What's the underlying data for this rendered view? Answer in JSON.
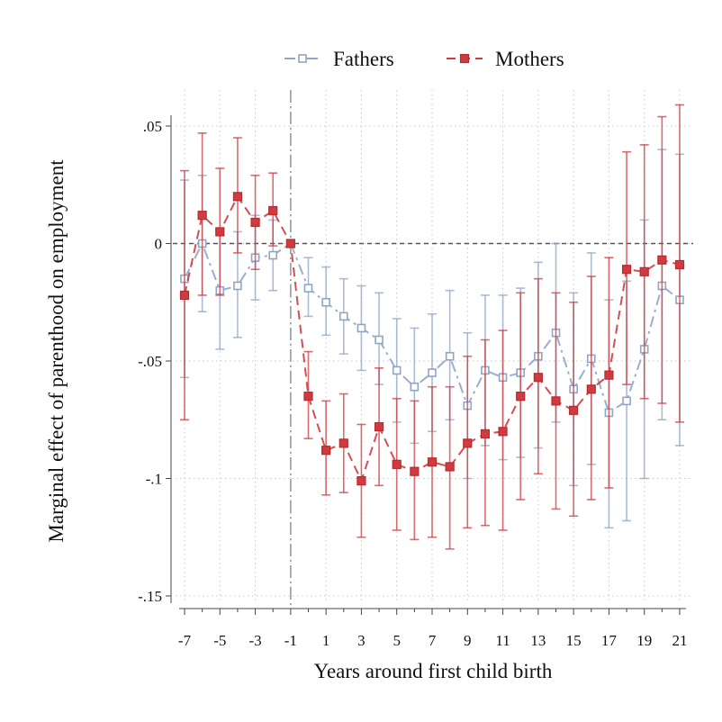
{
  "chart_data": {
    "type": "line",
    "title": "",
    "xlabel": "Years around first child birth",
    "ylabel": "Marginal effect of parenthood on employment",
    "xlim": [
      -7,
      21
    ],
    "ylim": [
      -0.15,
      0.05
    ],
    "x_ticks": [
      -7,
      -5,
      -3,
      -1,
      1,
      3,
      5,
      7,
      9,
      11,
      13,
      15,
      17,
      19,
      21
    ],
    "x_tick_labels": [
      "-7",
      "-5",
      "-3",
      "-1",
      "1",
      "3",
      "5",
      "7",
      "9",
      "11",
      "13",
      "15",
      "17",
      "19",
      "21"
    ],
    "y_ticks": [
      0.05,
      0,
      -0.05,
      -0.1,
      -0.15
    ],
    "y_tick_labels": [
      ".05",
      "0",
      "-.05",
      "-.1",
      "-.15"
    ],
    "reference_lines": {
      "horizontal_y": 0,
      "vertical_x": -1
    },
    "grid": true,
    "legend_position": "top-center",
    "x": [
      -7,
      -6,
      -5,
      -4,
      -3,
      -2,
      -1,
      0,
      1,
      2,
      3,
      4,
      5,
      6,
      7,
      8,
      9,
      10,
      11,
      12,
      13,
      14,
      15,
      16,
      17,
      18,
      19,
      20,
      21
    ],
    "series": [
      {
        "name": "Fathers",
        "color": "#8fa6c6",
        "marker": "hollow-square",
        "values": [
          -0.015,
          0.0,
          -0.02,
          -0.018,
          -0.006,
          -0.005,
          0.0,
          -0.019,
          -0.025,
          -0.031,
          -0.036,
          -0.041,
          -0.054,
          -0.061,
          -0.055,
          -0.048,
          -0.069,
          -0.054,
          -0.057,
          -0.055,
          -0.048,
          -0.038,
          -0.062,
          -0.049,
          -0.072,
          -0.067,
          -0.045,
          -0.018,
          -0.024
        ],
        "ci_lower": [
          -0.057,
          -0.029,
          -0.045,
          -0.04,
          -0.024,
          -0.02,
          0.0,
          -0.031,
          -0.039,
          -0.047,
          -0.054,
          -0.06,
          -0.076,
          -0.085,
          -0.08,
          -0.075,
          -0.1,
          -0.086,
          -0.092,
          -0.091,
          -0.087,
          -0.076,
          -0.103,
          -0.094,
          -0.121,
          -0.118,
          -0.1,
          -0.075,
          -0.086
        ],
        "ci_upper": [
          0.027,
          0.029,
          0.005,
          0.005,
          0.012,
          0.01,
          0.0,
          -0.006,
          -0.01,
          -0.015,
          -0.018,
          -0.021,
          -0.032,
          -0.036,
          -0.03,
          -0.02,
          -0.038,
          -0.022,
          -0.022,
          -0.019,
          -0.008,
          0.0,
          -0.021,
          -0.004,
          -0.024,
          -0.016,
          0.01,
          0.04,
          0.038
        ]
      },
      {
        "name": "Mothers",
        "color": "#d03b3f",
        "marker": "filled-square",
        "values": [
          -0.022,
          0.012,
          0.005,
          0.02,
          0.009,
          0.014,
          0.0,
          -0.065,
          -0.088,
          -0.085,
          -0.101,
          -0.078,
          -0.094,
          -0.097,
          -0.093,
          -0.095,
          -0.085,
          -0.081,
          -0.08,
          -0.065,
          -0.057,
          -0.067,
          -0.071,
          -0.062,
          -0.056,
          -0.011,
          -0.012,
          -0.007,
          -0.009
        ],
        "ci_lower": [
          -0.075,
          -0.022,
          -0.022,
          -0.004,
          -0.011,
          -0.001,
          0.0,
          -0.083,
          -0.107,
          -0.106,
          -0.125,
          -0.103,
          -0.122,
          -0.126,
          -0.125,
          -0.13,
          -0.121,
          -0.12,
          -0.122,
          -0.109,
          -0.098,
          -0.113,
          -0.116,
          -0.109,
          -0.104,
          -0.06,
          -0.066,
          -0.068,
          -0.076
        ],
        "ci_upper": [
          0.031,
          0.047,
          0.032,
          0.045,
          0.029,
          0.03,
          0.0,
          -0.046,
          -0.067,
          -0.064,
          -0.077,
          -0.053,
          -0.066,
          -0.067,
          -0.061,
          -0.061,
          -0.048,
          -0.041,
          -0.037,
          -0.021,
          -0.015,
          -0.021,
          -0.025,
          -0.014,
          -0.006,
          0.039,
          0.042,
          0.054,
          0.059
        ]
      }
    ]
  }
}
